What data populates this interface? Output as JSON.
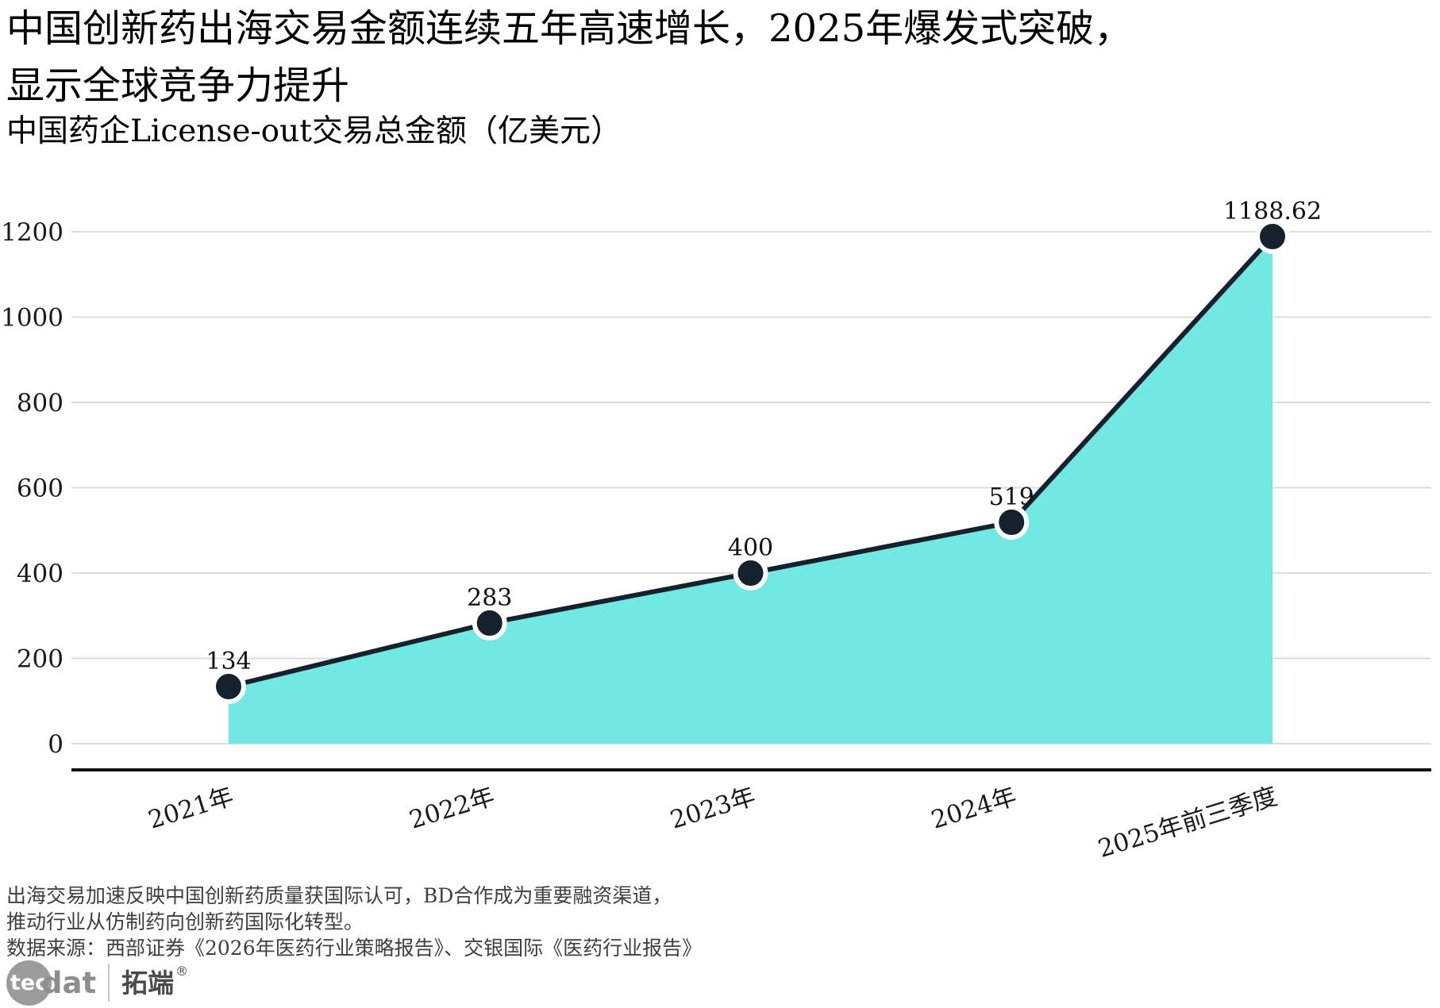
{
  "header": {
    "title_line1": "中国创新药出海交易金额连续五年高速增长，2025年爆发式突破，",
    "title_line2": "显示全球竞争力提升",
    "subtitle": "中国药企License-out交易总金额（亿美元）"
  },
  "chart_data": {
    "type": "area",
    "title": "中国药企License-out交易总金额（亿美元）",
    "categories": [
      "2021年",
      "2022年",
      "2023年",
      "2024年",
      "2025年前三季度"
    ],
    "values": [
      134,
      283,
      400,
      519,
      1188.62
    ],
    "point_labels": [
      "134",
      "283",
      "400",
      "519",
      "1188.62"
    ],
    "xlabel": "",
    "ylabel": "",
    "ylim": [
      0,
      1200
    ],
    "yticks": [
      0,
      200,
      400,
      600,
      800,
      1000,
      1200
    ],
    "grid": "horizontal",
    "legend": "none",
    "colors": {
      "area_fill": "#71E8E2",
      "line": "#15222E",
      "marker": "#15222E",
      "marker_ring": "#FFFFFF",
      "gridline": "#DCDCDC",
      "axis": "#111111"
    }
  },
  "footer": {
    "note_line1": "出海交易加速反映中国创新药质量获国际认可，BD合作成为重要融资渠道，",
    "note_line2": "推动行业从仿制药向创新药国际化转型。",
    "source": "数据来源：西部证券《2026年医药行业策略报告》、交银国际《医药行业报告》"
  },
  "logo": {
    "circle_text": "tec",
    "wordmark_suffix": "dat",
    "cn_name": "拓端",
    "registered_mark": "®"
  }
}
